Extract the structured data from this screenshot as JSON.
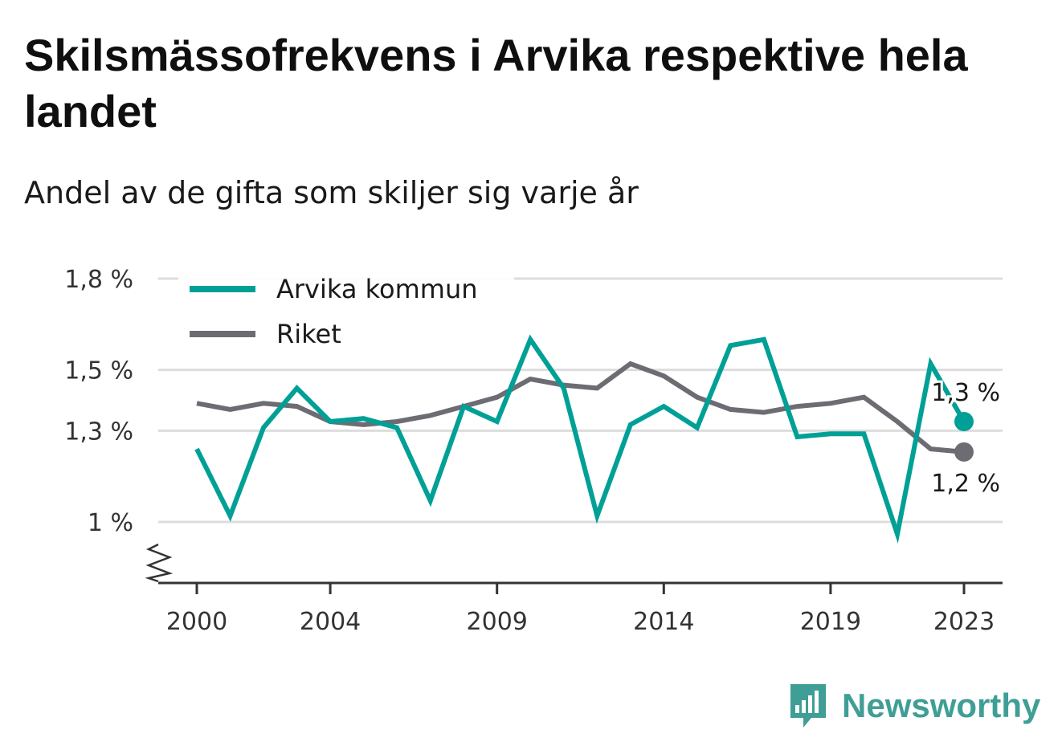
{
  "header": {
    "title": "Skilsmässofrekvens i Arvika respektive hela landet",
    "subtitle": "Andel av de gifta som skiljer sig varje år"
  },
  "brand": {
    "name": "Newsworthy",
    "icon": "newsworthy-logo-icon",
    "color": "#3f9e96"
  },
  "colors": {
    "arvika": "#00a096",
    "riket": "#6e6c73",
    "grid": "#dddddd",
    "axis": "#333333"
  },
  "chart_data": {
    "type": "line",
    "title": "Skilsmässofrekvens i Arvika respektive hela landet",
    "subtitle": "Andel av de gifta som skiljer sig varje år",
    "xlabel": "",
    "ylabel": "",
    "x": [
      2000,
      2001,
      2002,
      2003,
      2004,
      2005,
      2006,
      2007,
      2008,
      2009,
      2010,
      2011,
      2012,
      2013,
      2014,
      2015,
      2016,
      2017,
      2018,
      2019,
      2020,
      2021,
      2022,
      2023
    ],
    "x_ticks": [
      "2000",
      "2004",
      "2009",
      "2014",
      "2019",
      "2023"
    ],
    "y_ticks": [
      "1,8 %",
      "1,5 %",
      "1,3 %",
      "1 %"
    ],
    "ylim": [
      0.8,
      1.8
    ],
    "y_break": true,
    "grid": true,
    "legend_position": "top-left",
    "series": [
      {
        "name": "Arvika kommun",
        "color": "#00a096",
        "values": [
          1.24,
          1.02,
          1.31,
          1.44,
          1.33,
          1.34,
          1.31,
          1.07,
          1.38,
          1.33,
          1.6,
          1.44,
          1.02,
          1.32,
          1.38,
          1.31,
          1.58,
          1.6,
          1.28,
          1.29,
          1.29,
          0.96,
          1.52,
          1.33
        ],
        "end_label": "1,3 %"
      },
      {
        "name": "Riket",
        "color": "#6e6c73",
        "values": [
          1.39,
          1.37,
          1.39,
          1.38,
          1.33,
          1.32,
          1.33,
          1.35,
          1.38,
          1.41,
          1.47,
          1.45,
          1.44,
          1.52,
          1.48,
          1.41,
          1.37,
          1.36,
          1.38,
          1.39,
          1.41,
          1.33,
          1.24,
          1.23
        ],
        "end_label": "1,2 %"
      }
    ]
  }
}
